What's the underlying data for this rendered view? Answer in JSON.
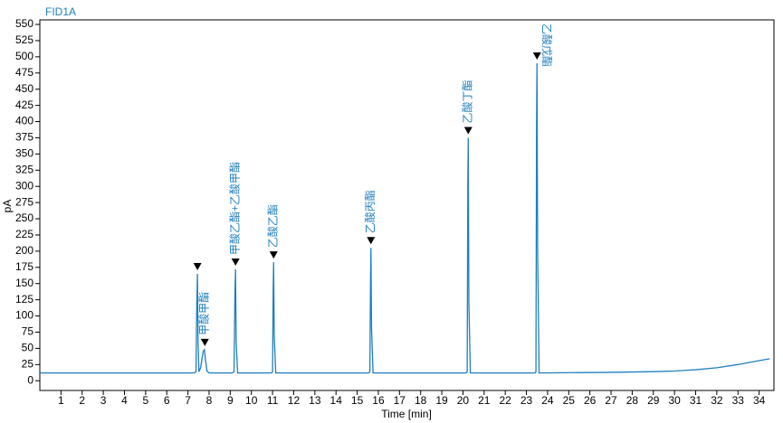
{
  "chart_data": {
    "type": "line",
    "title": "FID1A",
    "x_label": "Time [min]",
    "y_label": "pA",
    "xlim": [
      0,
      34.7
    ],
    "ylim": [
      -15,
      557
    ],
    "xticks": [
      1,
      2,
      3,
      4,
      5,
      6,
      7,
      8,
      9,
      10,
      11,
      12,
      13,
      14,
      15,
      16,
      17,
      18,
      19,
      20,
      21,
      22,
      23,
      24,
      25,
      26,
      27,
      28,
      29,
      30,
      31,
      32,
      33,
      34
    ],
    "yticks": [
      0,
      25,
      50,
      75,
      100,
      125,
      150,
      175,
      200,
      225,
      250,
      275,
      300,
      325,
      350,
      375,
      400,
      425,
      450,
      475,
      500,
      525,
      550
    ],
    "series": [
      {
        "color": "#1f7fbf",
        "x": [
          0,
          7.3,
          7.38,
          7.42,
          7.45,
          7.48,
          7.52,
          7.6,
          7.72,
          7.78,
          7.82,
          7.9,
          8.0,
          9.1,
          9.18,
          9.22,
          9.25,
          9.28,
          9.35,
          10.95,
          11.0,
          11.03,
          11.05,
          11.08,
          11.15,
          15.55,
          15.6,
          15.63,
          15.65,
          15.68,
          15.75,
          20.15,
          20.2,
          20.23,
          20.25,
          20.28,
          20.35,
          23.4,
          23.45,
          23.48,
          23.5,
          23.53,
          23.6,
          27,
          29,
          30,
          31,
          32,
          33,
          34,
          34.5
        ],
        "values": [
          12,
          12,
          14,
          120,
          165,
          60,
          14,
          20,
          45,
          48,
          35,
          15,
          12,
          12,
          14,
          130,
          172,
          60,
          12,
          12,
          14,
          140,
          183,
          70,
          12,
          12,
          14,
          150,
          205,
          80,
          12,
          12,
          14,
          300,
          375,
          120,
          12,
          12,
          14,
          400,
          490,
          200,
          12,
          13,
          14,
          15,
          17,
          20,
          25,
          31,
          34
        ]
      }
    ],
    "peaks": [
      {
        "x": 7.45,
        "y": 165
      },
      {
        "x": 7.8,
        "y": 48,
        "label": "甲酸甲酯"
      },
      {
        "x": 9.25,
        "y": 172,
        "label": "甲酸乙酯+乙酸甲酯"
      },
      {
        "x": 11.05,
        "y": 183,
        "label": "乙酸乙酯"
      },
      {
        "x": 15.65,
        "y": 205,
        "label": "乙酸丙酯"
      },
      {
        "x": 20.25,
        "y": 375,
        "label": "乙酸丁酯"
      },
      {
        "x": 23.5,
        "y": 490,
        "label": "乙酸戊酯"
      }
    ]
  }
}
